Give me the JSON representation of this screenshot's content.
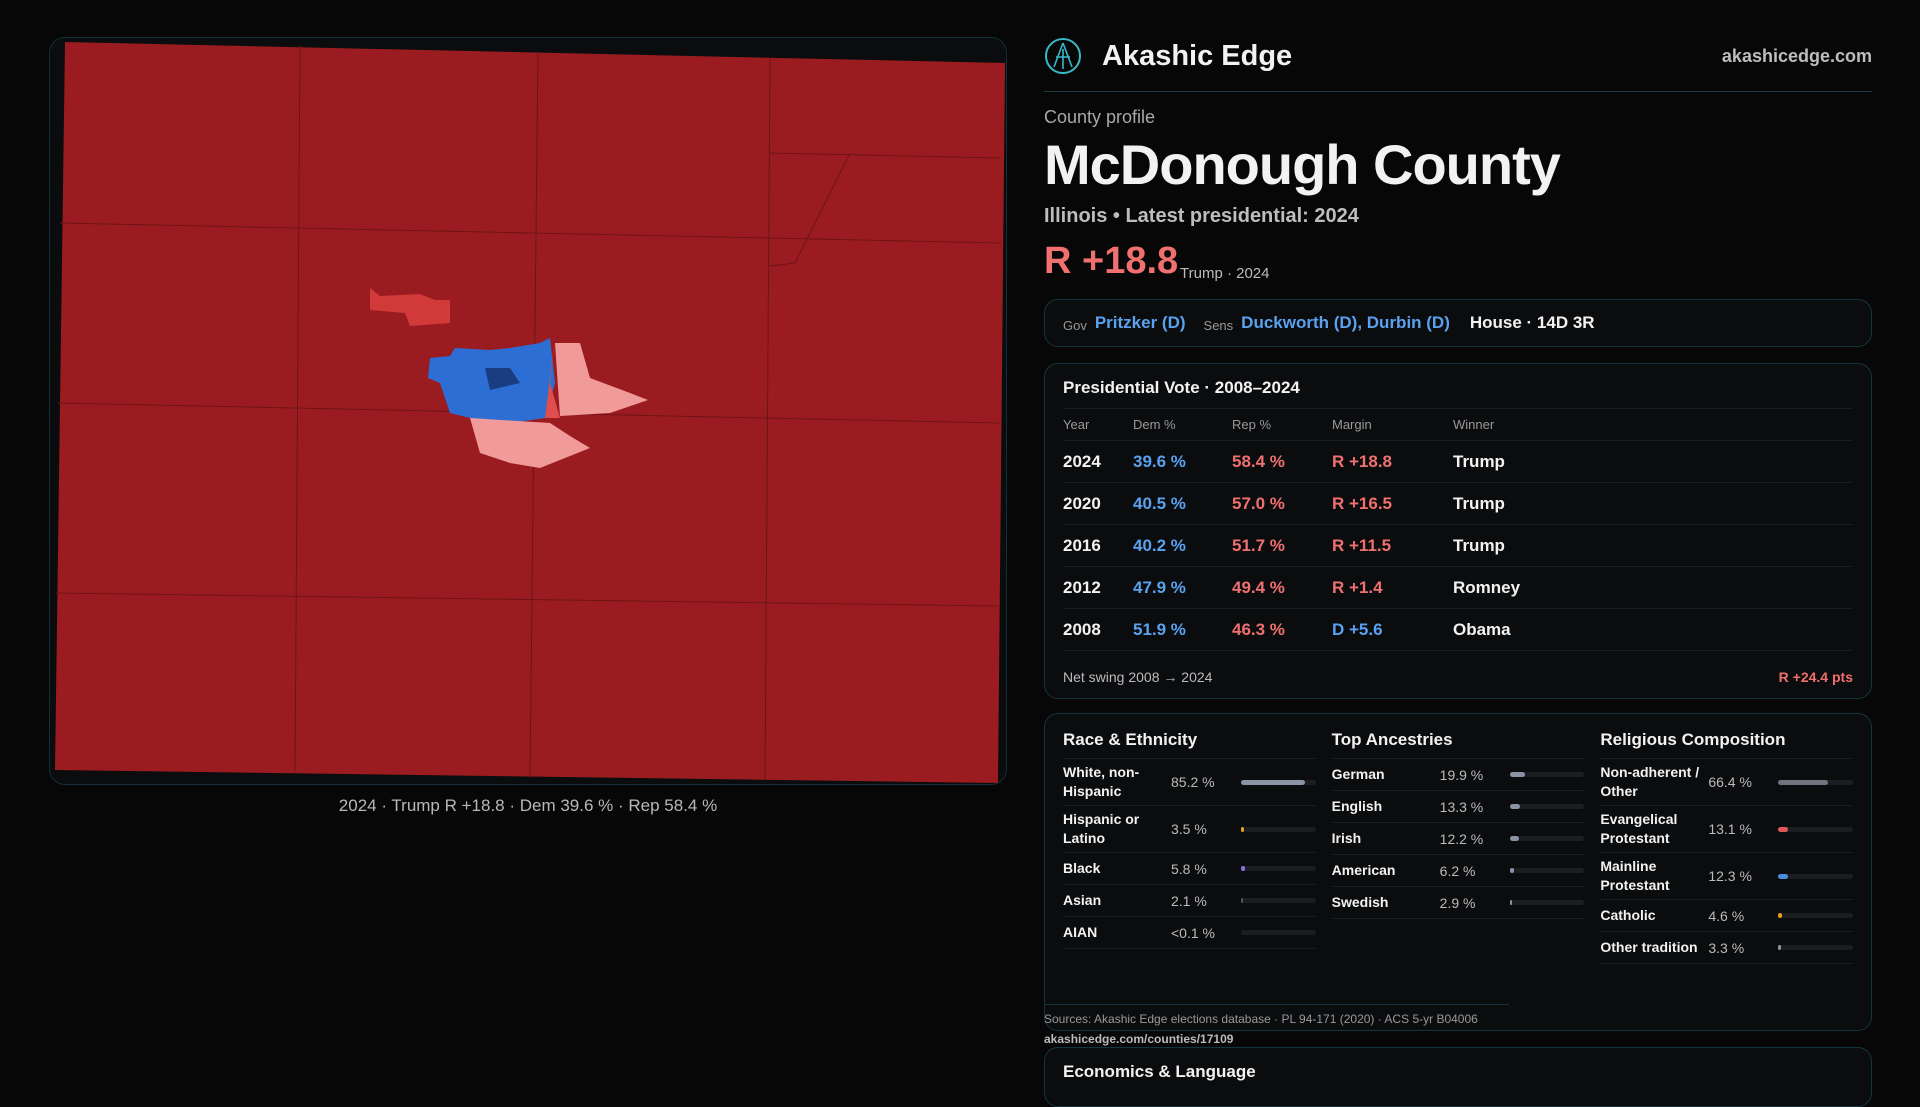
{
  "brand": {
    "name": "Akashic Edge",
    "site": "akashicedge.com"
  },
  "profile": {
    "kicker": "County profile",
    "title": "McDonough County",
    "subtitle": "Illinois • Latest presidential: 2024",
    "margin": "R +18.8",
    "margin_sub": "Trump · 2024"
  },
  "officials": {
    "gov_label": "Gov",
    "gov": "Pritzker (D)",
    "sens_label": "Sens",
    "sens": "Duckworth (D), Durbin (D)",
    "house": "House · 14D 3R"
  },
  "map": {
    "caption": "2024 · Trump R +18.8 · Dem 39.6 % · Rep 58.4 %"
  },
  "presidential": {
    "title": "Presidential Vote · 2008–2024",
    "headers": [
      "Year",
      "Dem %",
      "Rep %",
      "Margin",
      "Winner"
    ],
    "rows": [
      {
        "year": "2024",
        "dem": "39.6 %",
        "rep": "58.4 %",
        "margin": "R +18.8",
        "winner": "Trump",
        "party": "R"
      },
      {
        "year": "2020",
        "dem": "40.5 %",
        "rep": "57.0 %",
        "margin": "R +16.5",
        "winner": "Trump",
        "party": "R"
      },
      {
        "year": "2016",
        "dem": "40.2 %",
        "rep": "51.7 %",
        "margin": "R +11.5",
        "winner": "Trump",
        "party": "R"
      },
      {
        "year": "2012",
        "dem": "47.9 %",
        "rep": "49.4 %",
        "margin": "R +1.4",
        "winner": "Romney",
        "party": "R"
      },
      {
        "year": "2008",
        "dem": "51.9 %",
        "rep": "46.3 %",
        "margin": "D +5.6",
        "winner": "Obama",
        "party": "D"
      }
    ],
    "swing_label": "Net swing 2008 → 2024",
    "swing_value": "R +24.4 pts"
  },
  "demographics": [
    {
      "title": "Race & Ethnicity",
      "items": [
        {
          "label": "White, non-Hispanic",
          "value": "85.2 %",
          "pct": 85.2,
          "color": "#8a93a6"
        },
        {
          "label": "Hispanic or Latino",
          "value": "3.5 %",
          "pct": 3.5,
          "color": "#e0a020"
        },
        {
          "label": "Black",
          "value": "5.8 %",
          "pct": 5.8,
          "color": "#8a6ee0"
        },
        {
          "label": "Asian",
          "value": "2.1 %",
          "pct": 2.1,
          "color": "#555"
        },
        {
          "label": "AIAN",
          "value": "<0.1 %",
          "pct": 0,
          "color": "#555"
        }
      ]
    },
    {
      "title": "Top Ancestries",
      "items": [
        {
          "label": "German",
          "value": "19.9 %",
          "pct": 19.9,
          "color": "#8a93a6"
        },
        {
          "label": "English",
          "value": "13.3 %",
          "pct": 13.3,
          "color": "#8a93a6"
        },
        {
          "label": "Irish",
          "value": "12.2 %",
          "pct": 12.2,
          "color": "#8a93a6"
        },
        {
          "label": "American",
          "value": "6.2 %",
          "pct": 6.2,
          "color": "#8a93a6"
        },
        {
          "label": "Swedish",
          "value": "2.9 %",
          "pct": 2.9,
          "color": "#8a93a6"
        }
      ]
    },
    {
      "title": "Religious Composition",
      "items": [
        {
          "label": "Non-adherent / Other",
          "value": "66.4 %",
          "pct": 66.4,
          "color": "#6f7480"
        },
        {
          "label": "Evangelical Protestant",
          "value": "13.1 %",
          "pct": 13.1,
          "color": "#e05a5a"
        },
        {
          "label": "Mainline Protestant",
          "value": "12.3 %",
          "pct": 12.3,
          "color": "#4a8ae0"
        },
        {
          "label": "Catholic",
          "value": "4.6 %",
          "pct": 4.6,
          "color": "#e0a020"
        },
        {
          "label": "Other tradition",
          "value": "3.3 %",
          "pct": 3.3,
          "color": "#8a93a6"
        }
      ]
    }
  ],
  "sources": {
    "text": "Sources: Akashic Edge elections database · PL 94-171 (2020) · ACS 5-yr B04006",
    "url": "akashicedge.com/counties/17109"
  },
  "economics": {
    "title": "Economics & Language"
  },
  "colors": {
    "rep": "#9b1c20",
    "dem": "#2f6fd0"
  }
}
